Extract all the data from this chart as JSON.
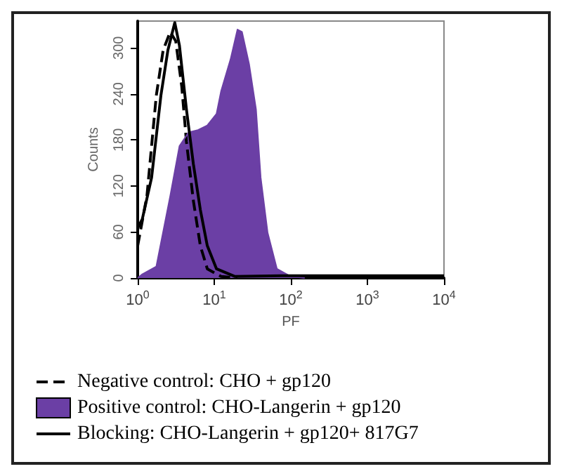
{
  "chart_data": {
    "type": "line",
    "xlabel": "PF",
    "ylabel": "Counts",
    "log": "x",
    "xlim": [
      1,
      10000
    ],
    "xticks": [
      {
        "value": 1,
        "label": "10$^{0}$"
      },
      {
        "value": 10,
        "label": "10$^{1}$"
      },
      {
        "value": 100,
        "label": "10$^{2}$"
      },
      {
        "value": 1000,
        "label": "10$^{3}$"
      },
      {
        "value": 10000,
        "label": "10$^{4}$"
      }
    ],
    "ylim": [
      0,
      335
    ],
    "yticks": [
      0,
      60,
      120,
      180,
      240,
      300
    ],
    "grid": false,
    "marker": "none",
    "legend": "bottom left",
    "series": [
      {
        "name": "Negative control: CHO + gp120",
        "line_style": "dashed",
        "color": "#000000",
        "x": [
          1,
          1.32,
          1.75,
          2.15,
          2.66,
          3.14,
          3.76,
          4.33,
          5.33,
          6.58,
          8.11,
          12.3,
          20
        ],
        "values": [
          42,
          107,
          238,
          297,
          321,
          309,
          250,
          178,
          101,
          42,
          12,
          2,
          0
        ]
      },
      {
        "name": "Positive control: CHO-Langerin + gp120",
        "type": "area",
        "color": "#6b3fa5",
        "x": [
          1,
          1.15,
          1.75,
          2.66,
          3.51,
          4.64,
          6.14,
          8.11,
          10.7,
          12.3,
          16.3,
          20.1,
          23,
          28.5,
          35.1,
          40.4,
          49.8,
          65.8,
          100,
          152
        ],
        "values": [
          0,
          5,
          15,
          107,
          172,
          190,
          193,
          199,
          214,
          244,
          285,
          324,
          321,
          279,
          220,
          131,
          59,
          12,
          2,
          0
        ]
      },
      {
        "name": "Blocking: CHO-Langerin + gp120+ 817G7",
        "line_style": "solid",
        "color": "#000000",
        "x": [
          1,
          1.15,
          1.52,
          2.01,
          2.48,
          3.05,
          3.51,
          4.33,
          5.33,
          6.58,
          8.11,
          10.7,
          18.7,
          75.6,
          303,
          1235,
          10000
        ],
        "values": [
          65,
          77,
          131,
          238,
          297,
          333,
          303,
          220,
          149,
          89,
          42,
          12,
          2,
          3,
          3,
          3,
          3
        ]
      }
    ]
  }
}
